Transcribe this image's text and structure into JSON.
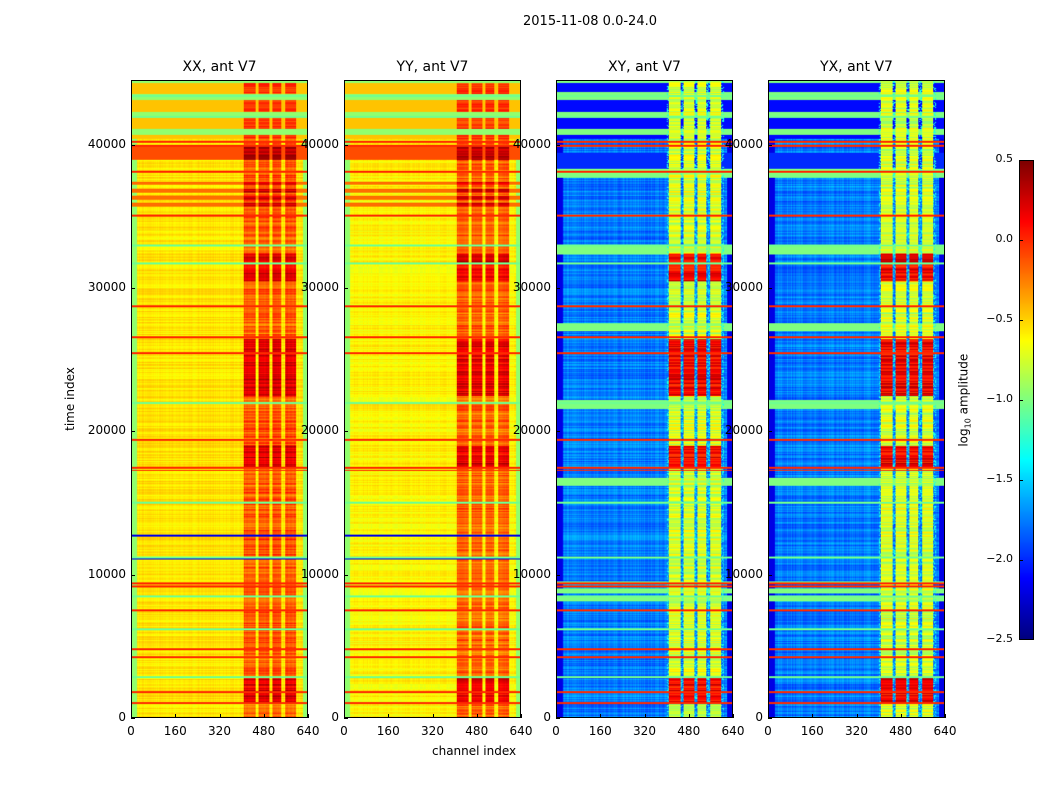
{
  "chart_data": {
    "type": "heatmap",
    "title": "2015-11-08 0.0-24.0",
    "xlabel": "channel index",
    "ylabel": "time index",
    "xlim": [
      0,
      640
    ],
    "ylim": [
      0,
      44500
    ],
    "xticks": [
      "0",
      "160",
      "320",
      "480",
      "640"
    ],
    "xtick_values": [
      0,
      160,
      320,
      480,
      640
    ],
    "yticks": [
      "0",
      "10000",
      "20000",
      "30000",
      "40000"
    ],
    "ytick_values": [
      0,
      10000,
      20000,
      30000,
      40000
    ],
    "panels": [
      {
        "title": "XX, ant V7",
        "kind": "auto",
        "base_level": -0.55
      },
      {
        "title": "YY, ant V7",
        "kind": "auto",
        "base_level": -0.6
      },
      {
        "title": "XY, ant V7",
        "kind": "cross",
        "base_level": -1.75
      },
      {
        "title": "YX, ant V7",
        "kind": "cross",
        "base_level": -1.75
      }
    ],
    "rfi_channel_bands": [
      [
        405,
        450
      ],
      [
        460,
        500
      ],
      [
        510,
        545
      ],
      [
        560,
        600
      ]
    ],
    "strong_rfi_time_ranges": [
      [
        1000,
        2800
      ],
      [
        22500,
        26500
      ],
      [
        30500,
        32500
      ],
      [
        17500,
        19000
      ]
    ],
    "red_flag_rows": [
      1000,
      1800,
      4200,
      4800,
      7500,
      9200,
      9400,
      17300,
      17500,
      19400,
      25500,
      26600,
      28800,
      35100,
      38200,
      40000,
      40300
    ],
    "green_flag_rows": [
      2800,
      6200,
      8500,
      11200,
      15000,
      22000,
      31800,
      33000,
      42000,
      43500
    ],
    "blue_flag_rows": [
      12700,
      11100
    ],
    "colorbar": {
      "label": "log10 amplitude",
      "label_main": "log",
      "label_sub": "10",
      "label_rest": " amplitude",
      "colormap": "jet",
      "range": [
        -2.5,
        0.5
      ],
      "ticks": [
        "0.5",
        "0.0",
        "−0.5",
        "−1.0",
        "−1.5",
        "−2.0",
        "−2.5"
      ],
      "tick_values": [
        0.5,
        0.0,
        -0.5,
        -1.0,
        -1.5,
        -2.0,
        -2.5
      ]
    }
  }
}
